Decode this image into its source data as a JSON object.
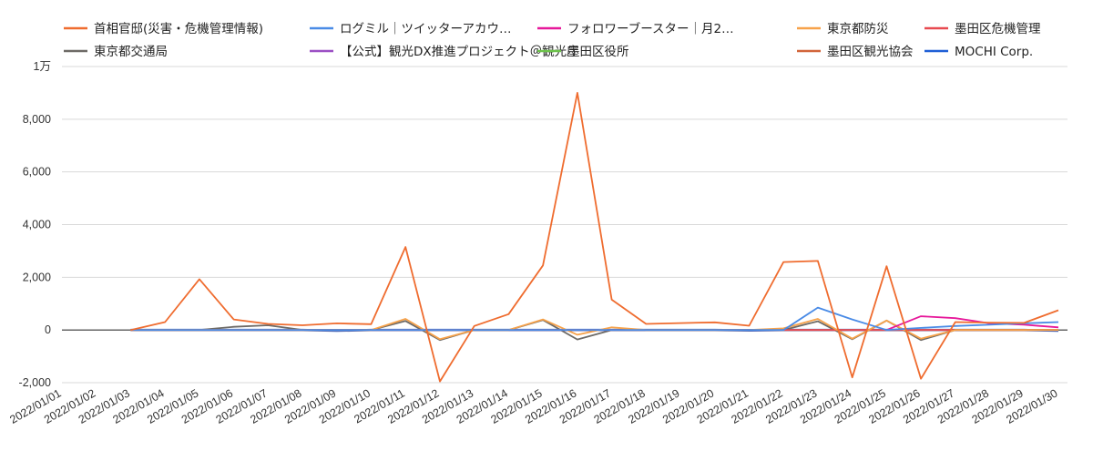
{
  "chart_data": {
    "type": "line",
    "title": "",
    "xlabel": "",
    "ylabel": "",
    "ylim": [
      -2000,
      10000
    ],
    "yticks": [
      {
        "value": 10000,
        "label": "1万"
      },
      {
        "value": 8000,
        "label": "8,000"
      },
      {
        "value": 6000,
        "label": "6,000"
      },
      {
        "value": 4000,
        "label": "4,000"
      },
      {
        "value": 2000,
        "label": "2,000"
      },
      {
        "value": 0,
        "label": "0"
      },
      {
        "value": -2000,
        "label": "-2,000"
      }
    ],
    "grid": true,
    "legend_position": "top",
    "x": [
      "2022/01/01",
      "2022/01/02",
      "2022/01/03",
      "2022/01/04",
      "2022/01/05",
      "2022/01/06",
      "2022/01/07",
      "2022/01/08",
      "2022/01/09",
      "2022/01/10",
      "2022/01/11",
      "2022/01/12",
      "2022/01/13",
      "2022/01/14",
      "2022/01/15",
      "2022/01/16",
      "2022/01/17",
      "2022/01/18",
      "2022/01/19",
      "2022/01/20",
      "2022/01/21",
      "2022/01/22",
      "2022/01/23",
      "2022/01/24",
      "2022/01/25",
      "2022/01/26",
      "2022/01/27",
      "2022/01/28",
      "2022/01/29",
      "2022/01/30"
    ],
    "series": [
      {
        "name": "首相官邸(災害・危機管理情報)",
        "color": "#ef6c2f",
        "values": [
          null,
          null,
          0,
          300,
          1930,
          400,
          230,
          180,
          250,
          220,
          3150,
          -1950,
          150,
          600,
          2450,
          9000,
          1150,
          230,
          260,
          290,
          160,
          2580,
          2620,
          -1800,
          2420,
          -1850,
          300,
          280,
          270,
          750
        ]
      },
      {
        "name": "ログミル｜ツイッターアカウ…",
        "color": "#4a8be6",
        "values": [
          null,
          null,
          0,
          0,
          0,
          0,
          0,
          0,
          0,
          0,
          0,
          0,
          0,
          0,
          0,
          0,
          0,
          0,
          0,
          0,
          0,
          0,
          850,
          400,
          0,
          80,
          150,
          200,
          250,
          300
        ]
      },
      {
        "name": "フォロワーブースター｜月2…",
        "color": "#e6189a",
        "values": [
          null,
          null,
          null,
          null,
          null,
          null,
          null,
          null,
          null,
          null,
          null,
          null,
          null,
          null,
          null,
          null,
          null,
          null,
          null,
          null,
          null,
          null,
          null,
          null,
          0,
          520,
          450,
          250,
          200,
          100
        ]
      },
      {
        "name": "東京都防災",
        "color": "#f7a24a",
        "values": [
          null,
          null,
          0,
          0,
          0,
          0,
          0,
          0,
          0,
          0,
          420,
          -350,
          0,
          0,
          400,
          -180,
          100,
          0,
          0,
          0,
          0,
          60,
          420,
          -330,
          360,
          -330,
          0,
          0,
          0,
          0
        ]
      },
      {
        "name": "墨田区危機管理",
        "color": "#e84a50",
        "values": [
          null,
          null,
          0,
          0,
          0,
          0,
          0,
          0,
          0,
          0,
          0,
          0,
          0,
          0,
          0,
          0,
          0,
          0,
          0,
          0,
          0,
          0,
          0,
          0,
          0,
          0,
          0,
          0,
          0,
          0
        ]
      },
      {
        "name": "東京都交通局",
        "color": "#6d6a66",
        "values": [
          null,
          null,
          0,
          0,
          0,
          120,
          180,
          0,
          0,
          0,
          340,
          -380,
          0,
          0,
          380,
          -360,
          0,
          0,
          0,
          0,
          0,
          0,
          330,
          -350,
          360,
          -380,
          0,
          0,
          0,
          0
        ]
      },
      {
        "name": "【公式】観光DX推進プロジェクト＠観光庁",
        "color": "#9b4fc4",
        "values": [
          null,
          null,
          0,
          0,
          0,
          0,
          0,
          0,
          0,
          0,
          0,
          0,
          0,
          0,
          0,
          0,
          0,
          0,
          0,
          0,
          0,
          0,
          0,
          0,
          0,
          0,
          0,
          0,
          0,
          0
        ]
      },
      {
        "name": "墨田区役所",
        "color": "#6cc24a",
        "values": [
          null,
          null,
          0,
          0,
          0,
          0,
          0,
          0,
          0,
          0,
          0,
          0,
          0,
          0,
          0,
          0,
          0,
          0,
          0,
          0,
          0,
          0,
          0,
          0,
          0,
          0,
          0,
          0,
          0,
          0
        ]
      },
      {
        "name": "墨田区観光協会",
        "color": "#d2653a",
        "values": [
          null,
          null,
          0,
          0,
          0,
          0,
          0,
          0,
          0,
          0,
          0,
          0,
          0,
          0,
          0,
          0,
          0,
          0,
          0,
          0,
          0,
          0,
          0,
          0,
          0,
          0,
          0,
          0,
          0,
          0
        ]
      },
      {
        "name": "MOCHI Corp.",
        "color": "#1f5fd6",
        "values": [
          null,
          null,
          0,
          0,
          0,
          0,
          0,
          0,
          -30,
          0,
          0,
          0,
          0,
          0,
          0,
          0,
          0,
          0,
          0,
          0,
          -20,
          0,
          0,
          0,
          0,
          0,
          0,
          0,
          0,
          -30
        ]
      }
    ]
  }
}
